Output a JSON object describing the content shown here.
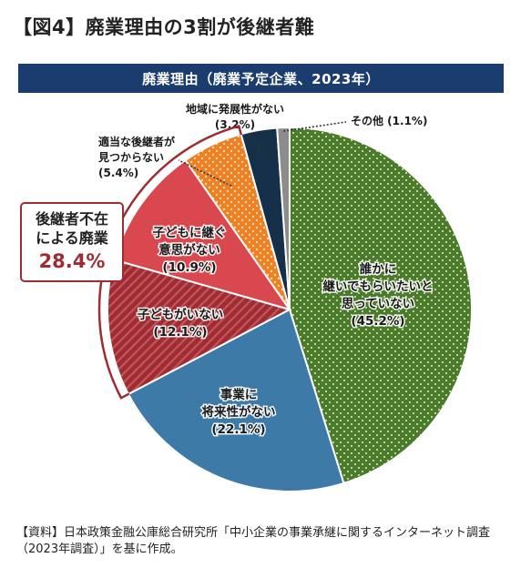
{
  "figure_title": "【図4】廃業理由の3割が後継者難",
  "source_note": "【資料】日本政策金融公庫総合研究所「中小企業の事業承継に関するインターネット調査（2023年調査）」を基に作成。",
  "chart_data": {
    "type": "pie",
    "title": "廃業理由（廃業予定企業、2023年）",
    "slices": [
      {
        "label_lines": [
          "誰かに",
          "継いでもらいたいと",
          "思っていない"
        ],
        "value": 45.2,
        "value_text": "(45.2%)",
        "color": "#4a7a2a",
        "pattern": "dots-light",
        "placement": "inside"
      },
      {
        "label_lines": [
          "事業に",
          "将来性がない"
        ],
        "value": 22.1,
        "value_text": "(22.1%)",
        "color": "#3d7aa8",
        "pattern": "solid",
        "placement": "inside"
      },
      {
        "label_lines": [
          "子どもがいない"
        ],
        "value": 12.1,
        "value_text": "(12.1%)",
        "color": "#9e2c33",
        "pattern": "stripes",
        "placement": "inside"
      },
      {
        "label_lines": [
          "子どもに継ぐ",
          "意思がない"
        ],
        "value": 10.9,
        "value_text": "(10.9%)",
        "color": "#d9474f",
        "pattern": "solid",
        "placement": "inside"
      },
      {
        "label_lines": [
          "適当な後継者が",
          "見つからない"
        ],
        "value": 5.4,
        "value_text": "(5.4%)",
        "color": "#f07f1f",
        "pattern": "dots-light",
        "placement": "outside"
      },
      {
        "label_lines": [
          "地域に発展性がない"
        ],
        "value": 3.2,
        "value_text": "(3.2%)",
        "color": "#16304a",
        "pattern": "solid",
        "placement": "outside"
      },
      {
        "label_lines": [
          "その他"
        ],
        "value": 1.1,
        "value_text": "(1.1%)",
        "color": "#8c8c8c",
        "pattern": "solid",
        "placement": "outside"
      }
    ],
    "group": {
      "label_lines": [
        "後継者不在",
        "による廃業"
      ],
      "value": 28.4,
      "value_text": "28.4%",
      "color": "#9e2c33"
    }
  }
}
